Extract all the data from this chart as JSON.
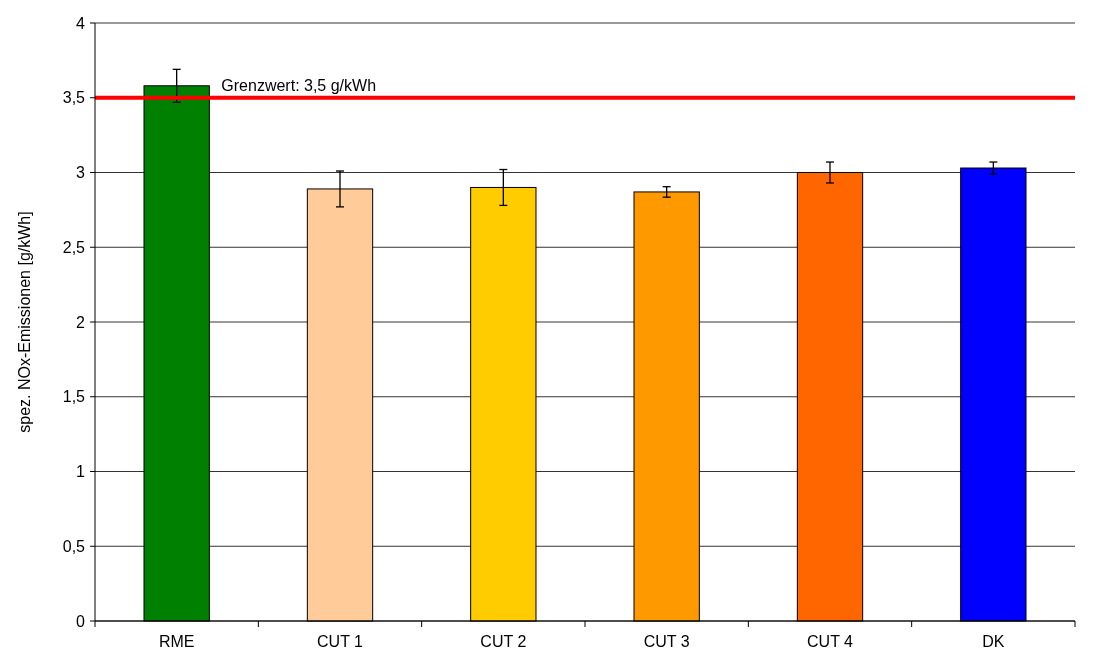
{
  "chart_data": {
    "type": "bar",
    "ylabel": "spez. NOx-Emissionen [g/kWh]",
    "categories": [
      "RME",
      "CUT 1",
      "CUT 2",
      "CUT 3",
      "CUT 4",
      "DK"
    ],
    "values": [
      3.58,
      2.89,
      2.9,
      2.87,
      3.0,
      3.03
    ],
    "colors": [
      "#008000",
      "#ffcc99",
      "#ffcc00",
      "#ff9900",
      "#ff6600",
      "#0000ff"
    ],
    "errors": [
      0.11,
      0.12,
      0.12,
      0.035,
      0.07,
      0.04
    ],
    "ylim": [
      0,
      4
    ],
    "yticks": [
      0,
      {
        "value": 0.5,
        "label": "0,5"
      },
      1,
      {
        "value": 1.5,
        "label": "1,5"
      },
      2,
      {
        "value": 2.5,
        "label": "2,5"
      },
      3,
      {
        "value": 3.5,
        "label": "3,5"
      },
      4
    ],
    "grid": "y",
    "ref_lines": [
      {
        "axis": "y",
        "value": 3.5,
        "label": "Grenzwert: 3,5 g/kWh",
        "color": "#ff0000"
      }
    ]
  }
}
